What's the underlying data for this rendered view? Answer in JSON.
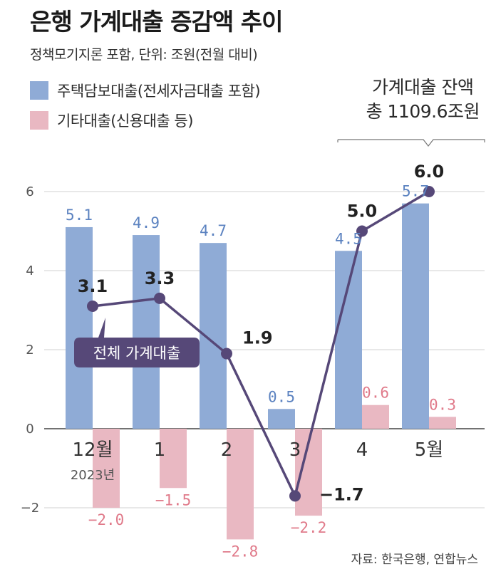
{
  "header": {
    "title": "은행 가계대출 증감액 추이",
    "subtitle": "정책모기지론 포함, 단위: 조원(전월 대비)"
  },
  "legend": {
    "mortgage_label": "주택담보대출(전세자금대출 포함)",
    "other_label": "기타대출(신용대출 등)"
  },
  "balance": {
    "line1": "가계대출 잔액",
    "line2": "총 1109.6조원"
  },
  "callout": {
    "label": "전체 가계대출"
  },
  "source": "자료: 한국은행, 연합뉴스",
  "colors": {
    "mortgage": "#8fabd6",
    "other": "#e9b8c2",
    "total": "#564878",
    "grid": "#d0d0d0"
  },
  "chart_data": {
    "type": "bar",
    "title": "은행 가계대출 증감액 추이",
    "ylabel": "조원",
    "ylim": [
      -2,
      6
    ],
    "yticks": [
      "6",
      "4",
      "2",
      "0",
      "−2"
    ],
    "categories": [
      "12월",
      "1",
      "2",
      "3",
      "4",
      "5월"
    ],
    "year_note": "2023년",
    "series": [
      {
        "name": "주택담보대출(전세자금대출 포함)",
        "kind": "bar",
        "values": [
          5.1,
          4.9,
          4.7,
          0.5,
          4.5,
          5.7
        ],
        "labels": [
          "5.1",
          "4.9",
          "4.7",
          "0.5",
          "4.5",
          "5.7"
        ]
      },
      {
        "name": "기타대출(신용대출 등)",
        "kind": "bar",
        "values": [
          -2.0,
          -1.5,
          -2.8,
          -2.2,
          0.6,
          0.3
        ],
        "labels": [
          "−2.0",
          "−1.5",
          "−2.8",
          "−2.2",
          "0.6",
          "0.3"
        ]
      },
      {
        "name": "전체 가계대출",
        "kind": "line",
        "values": [
          3.1,
          3.3,
          1.9,
          -1.7,
          5.0,
          6.0
        ],
        "labels": [
          "3.1",
          "3.3",
          "1.9",
          "−1.7",
          "5.0",
          "6.0"
        ]
      }
    ]
  }
}
